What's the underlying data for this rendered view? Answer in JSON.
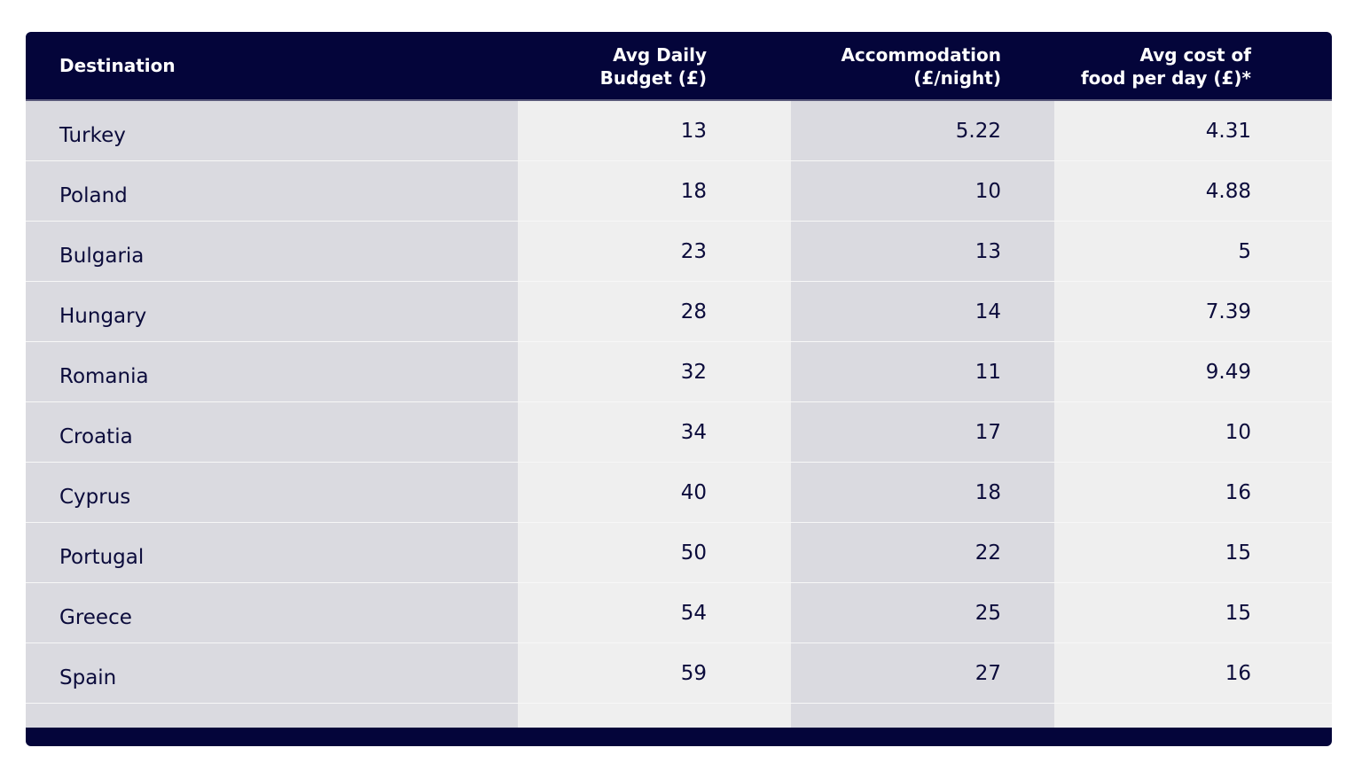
{
  "colors": {
    "header_bg": "#04053a",
    "header_text": "#ffffff",
    "text": "#0b0b3b",
    "shade_dark": "#dadae0",
    "shade_light": "#efefef"
  },
  "table": {
    "headers": [
      [
        "Destination"
      ],
      [
        "Avg Daily",
        "Budget (£)"
      ],
      [
        "Accommodation",
        "(£/night)"
      ],
      [
        "Avg cost of",
        "food per day (£)*"
      ]
    ],
    "rows": [
      {
        "destination": "Turkey",
        "budget": "13",
        "accommodation": "5.22",
        "food": "4.31"
      },
      {
        "destination": "Poland",
        "budget": "18",
        "accommodation": "10",
        "food": "4.88"
      },
      {
        "destination": "Bulgaria",
        "budget": "23",
        "accommodation": "13",
        "food": "5"
      },
      {
        "destination": "Hungary",
        "budget": "28",
        "accommodation": "14",
        "food": "7.39"
      },
      {
        "destination": "Romania",
        "budget": "32",
        "accommodation": "11",
        "food": "9.49"
      },
      {
        "destination": "Croatia",
        "budget": "34",
        "accommodation": "17",
        "food": "10"
      },
      {
        "destination": "Cyprus",
        "budget": "40",
        "accommodation": "18",
        "food": "16"
      },
      {
        "destination": "Portugal",
        "budget": "50",
        "accommodation": "22",
        "food": "15"
      },
      {
        "destination": "Greece",
        "budget": "54",
        "accommodation": "25",
        "food": "15"
      },
      {
        "destination": "Spain",
        "budget": "59",
        "accommodation": "27",
        "food": "16"
      }
    ]
  },
  "chart_data": {
    "type": "table",
    "columns": [
      "Destination",
      "Avg Daily Budget (£)",
      "Accommodation (£/night)",
      "Avg cost of food per day (£)*"
    ],
    "categories": [
      "Turkey",
      "Poland",
      "Bulgaria",
      "Hungary",
      "Romania",
      "Croatia",
      "Cyprus",
      "Portugal",
      "Greece",
      "Spain"
    ],
    "series": [
      {
        "name": "Avg Daily Budget (£)",
        "values": [
          13,
          18,
          23,
          28,
          32,
          34,
          40,
          50,
          54,
          59
        ]
      },
      {
        "name": "Accommodation (£/night)",
        "values": [
          5.22,
          10,
          13,
          14,
          11,
          17,
          18,
          22,
          25,
          27
        ]
      },
      {
        "name": "Avg cost of food per day (£)*",
        "values": [
          4.31,
          4.88,
          5,
          7.39,
          9.49,
          10,
          16,
          15,
          15,
          16
        ]
      }
    ]
  }
}
